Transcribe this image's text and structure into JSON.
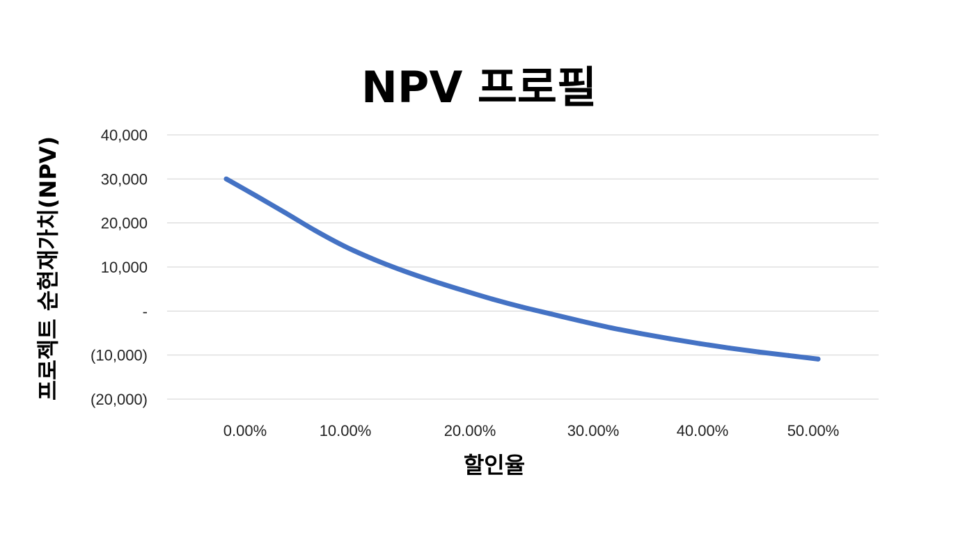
{
  "chart_data": {
    "type": "line",
    "title": "NPV 프로필",
    "xlabel": "할인율",
    "ylabel": "프로젝트 순현재가치(NPV)",
    "x_tick_labels": [
      "0.00%",
      "10.00%",
      "20.00%",
      "30.00%",
      "40.00%",
      "50.00%"
    ],
    "x_ticks": [
      0,
      10,
      20,
      30,
      40,
      50
    ],
    "y_tick_labels": [
      "40,000",
      "30,000",
      "20,000",
      "10,000",
      "-",
      "(10,000)",
      "(20,000)"
    ],
    "y_ticks": [
      40000,
      30000,
      20000,
      10000,
      0,
      -10000,
      -20000
    ],
    "ylim": [
      -20000,
      40000
    ],
    "grid": true,
    "line_color": "#4472C4",
    "series": [
      {
        "x": [
          0,
          2.5,
          5,
          7.5,
          10,
          12.5,
          15,
          17.5,
          20,
          22.5,
          25,
          27.5,
          30,
          32.5,
          35,
          37.5,
          40,
          42.5,
          45,
          47.5,
          50
        ],
        "values": [
          30000,
          26200,
          22300,
          18300,
          14700,
          11700,
          9100,
          6800,
          4700,
          2700,
          900,
          -700,
          -2300,
          -3800,
          -5100,
          -6300,
          -7400,
          -8400,
          -9300,
          -10100,
          -10900
        ]
      }
    ]
  }
}
